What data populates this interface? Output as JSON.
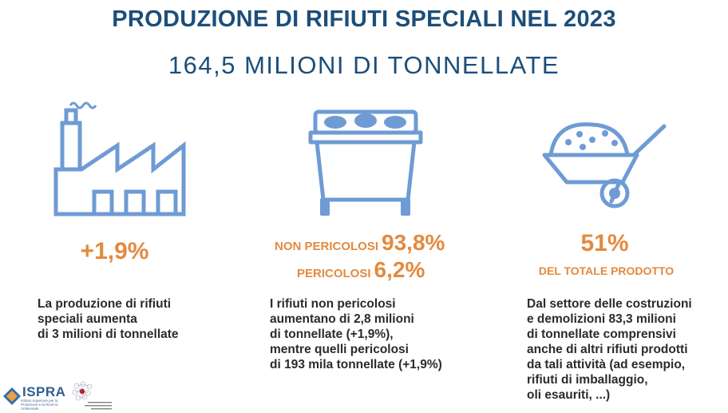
{
  "header": {
    "title": "PRODUZIONE DI RIFIUTI SPECIALI NEL 2023",
    "subtitle": "164,5 MILIONI DI TONNELLATE"
  },
  "colors": {
    "primary": "#1c4e7a",
    "accent": "#e38a3f",
    "icon": "#6f9bd4",
    "text": "#2b2b2b"
  },
  "columns": [
    {
      "icon": "factory-icon",
      "stat": "+1,9%",
      "description": [
        "La produzione di rifiuti",
        "speciali aumenta",
        "di 3 milioni di tonnellate"
      ]
    },
    {
      "icon": "waste-bin-icon",
      "rows": [
        {
          "label": "NON PERICOLOSI",
          "value": "93,8%"
        },
        {
          "label": "PERICOLOSI",
          "value": "6,2%"
        }
      ],
      "description": [
        "I rifiuti non pericolosi",
        "aumentano di 2,8 milioni",
        "di tonnellate (+1,9%),",
        "mentre quelli pericolosi",
        "di 193 mila tonnellate (+1,9%)"
      ]
    },
    {
      "icon": "wheelbarrow-icon",
      "stat": "51%",
      "stat_label": "DEL TOTALE PRODOTTO",
      "description": [
        "Dal settore delle costruzioni",
        "e demolizioni 83,3 milioni",
        "di tonnellate comprensivi",
        "anche di altri rifiuti prodotti",
        "da tali attività (ad esempio,",
        "rifiuti di imballaggio,",
        "oli esauriti, ...)"
      ]
    }
  ],
  "footer": {
    "logo_name": "ISPRA",
    "logo_subtitle": "Istituto Superiore per la Protezione e la Ricerca Ambientale",
    "partner_text": "Sistema Nazionale per la Protezione dell'Ambiente"
  }
}
